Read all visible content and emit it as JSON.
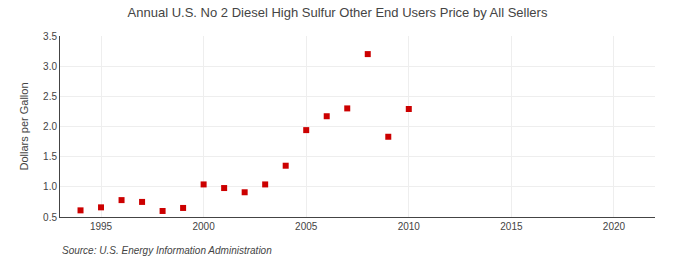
{
  "chart_data": {
    "type": "scatter",
    "title": "Annual U.S. No 2 Diesel High Sulfur Other End Users Price by All Sellers",
    "ylabel": "Dollars per Gallon",
    "annotations": [
      "Source: U.S. Energy Information Administration"
    ],
    "x": [
      1994,
      1995,
      1996,
      1997,
      1998,
      1999,
      2000,
      2001,
      2002,
      2003,
      2004,
      2005,
      2006,
      2007,
      2008,
      2009,
      2010
    ],
    "values": [
      0.61,
      0.66,
      0.78,
      0.75,
      0.6,
      0.65,
      1.04,
      0.98,
      0.91,
      1.04,
      1.35,
      1.94,
      2.17,
      2.3,
      3.2,
      1.83,
      2.29
    ],
    "color": "#cc0000",
    "marker": "square",
    "xlim": [
      1993,
      2022
    ],
    "ylim": [
      0.5,
      3.5
    ],
    "xticks": [
      1995,
      2000,
      2005,
      2010,
      2015,
      2020
    ],
    "yticks": [
      0.5,
      {
        "value": 1.0,
        "label": "1.0"
      },
      1.5,
      {
        "value": 2.0,
        "label": "2.0"
      },
      2.5,
      {
        "value": 3.0,
        "label": "3.0"
      },
      3.5
    ],
    "grid": true
  }
}
